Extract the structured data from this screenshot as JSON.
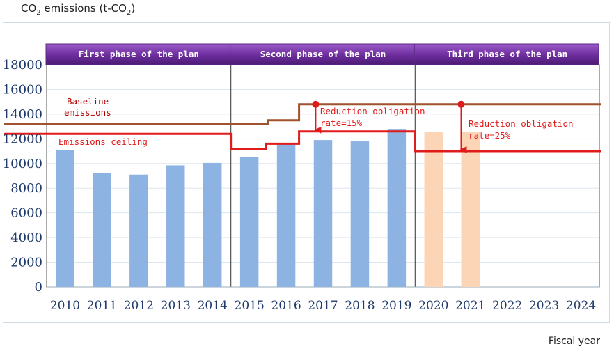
{
  "chart_data": {
    "type": "bar",
    "title_main": "CO",
    "title_sub": "2",
    "title_rest": " emissions (t-CO",
    "title_sub2": "2",
    "title_end": ")",
    "xlabel": "Fiscal year",
    "categories": [
      "2010",
      "2011",
      "2012",
      "2013",
      "2014",
      "2015",
      "2016",
      "2017",
      "2018",
      "2019",
      "2020",
      "2021",
      "2022",
      "2023",
      "2024"
    ],
    "ylim": [
      0,
      18000
    ],
    "yticks": [
      "0",
      "2000",
      "4000",
      "6000",
      "8000",
      "10000",
      "12000",
      "14000",
      "16000",
      "18000"
    ],
    "series": [
      {
        "values": [
          11100,
          9200,
          9100,
          9850,
          10050,
          10500,
          11600,
          11900,
          11850,
          12800,
          null,
          null,
          null,
          null,
          null
        ],
        "color": "#8db3e2"
      },
      {
        "values": [
          null,
          null,
          null,
          null,
          null,
          null,
          null,
          null,
          null,
          null,
          12550,
          12550,
          null,
          null,
          null
        ],
        "color": "#fbd5b5"
      }
    ],
    "phases": [
      "First phase of the plan",
      "Second phase of the plan",
      "Third phase of the plan"
    ],
    "phase_color": "#7030a0",
    "baseline_color": "#a0522d",
    "ceiling_color": "#e01b1b",
    "annotations": {
      "baseline_1": "Baseline",
      "baseline_2": "emissions",
      "ceiling": "Emissions ceiling",
      "obligation_2_1": "Reduction obligation",
      "obligation_2_2": "rate=15%",
      "obligation_3_1": "Reduction obligation",
      "obligation_3_2": "rate=25%"
    }
  }
}
